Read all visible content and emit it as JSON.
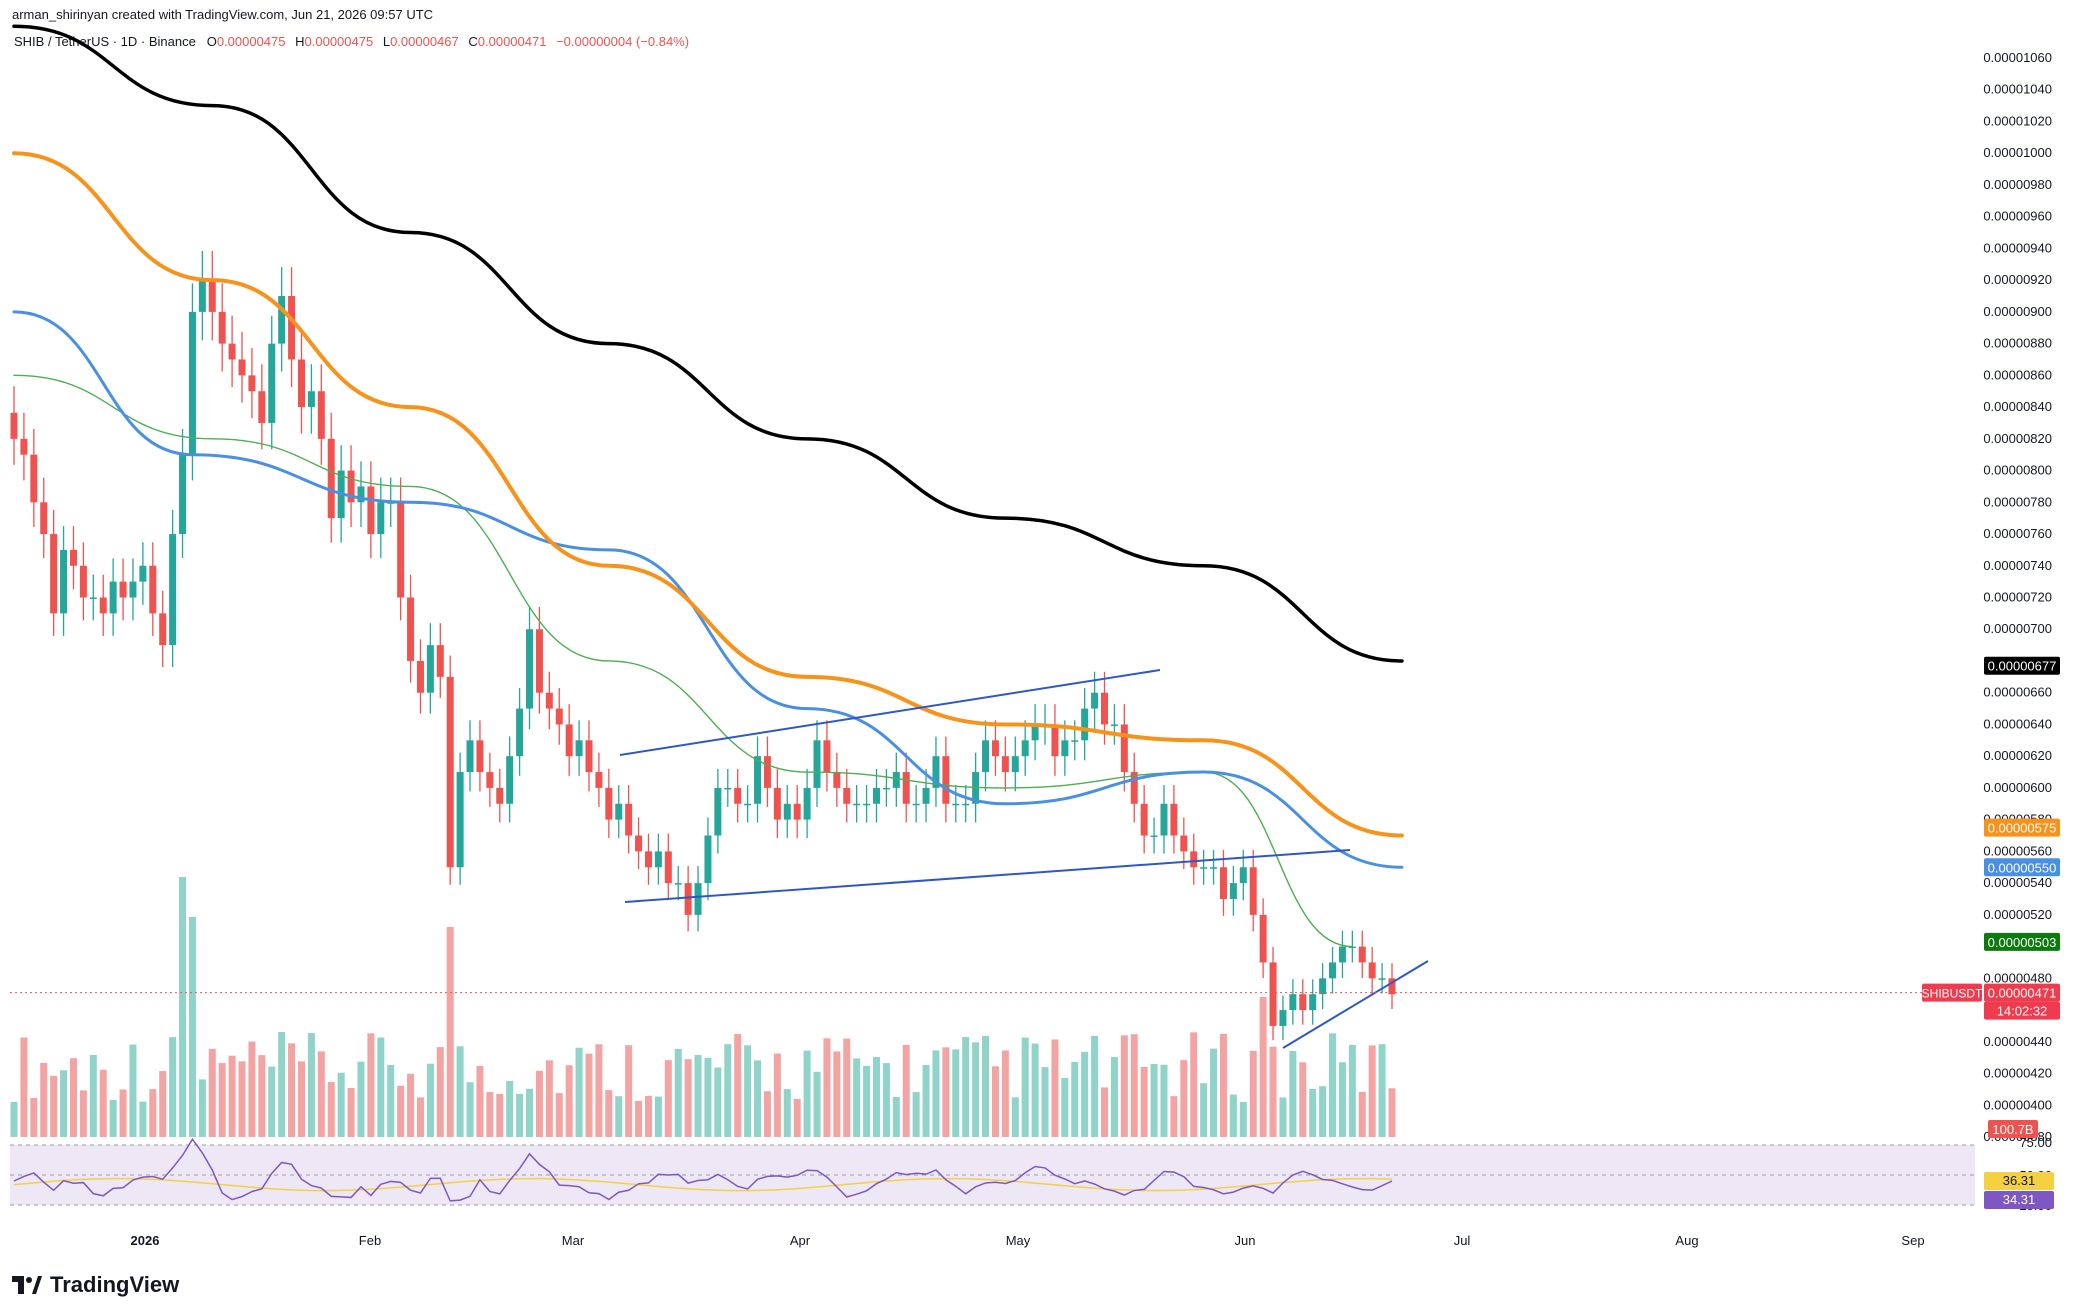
{
  "header": {
    "credit": "arman_shirinyan created with TradingView.com, Jun 21, 2026 09:57 UTC",
    "symbol": "SHIB / TetherUS · 1D · Binance",
    "ohlc": [
      {
        "label": "O",
        "value": "0.00000475"
      },
      {
        "label": "H",
        "value": "0.00000475"
      },
      {
        "label": "L",
        "value": "0.00000467"
      },
      {
        "label": "C",
        "value": "0.00000471"
      }
    ],
    "change": "−0.00000004 (−0.84%)"
  },
  "brand": "TradingView",
  "chart_data": {
    "type": "candlestick",
    "y_ticks": [
      "0.00001060",
      "0.00001040",
      "0.00001020",
      "0.00001000",
      "0.00000980",
      "0.00000960",
      "0.00000940",
      "0.00000920",
      "0.00000900",
      "0.00000880",
      "0.00000860",
      "0.00000840",
      "0.00000820",
      "0.00000800",
      "0.00000780",
      "0.00000760",
      "0.00000740",
      "0.00000720",
      "0.00000700",
      "0.00000660",
      "0.00000640",
      "0.00000620",
      "0.00000600",
      "0.00000580",
      "0.00000560",
      "0.00000540",
      "0.00000520",
      "0.00000480",
      "0.00000440",
      "0.00000420",
      "0.00000400",
      "0.00000380"
    ],
    "x_ticks": [
      "2026",
      "Feb",
      "Mar",
      "Apr",
      "May",
      "Jun",
      "Jul",
      "Aug",
      "Sep"
    ],
    "ylim": [
      3.8e-06,
      1.06e-05
    ],
    "price_labels": [
      {
        "name": "ma-200",
        "text": "0.00000677",
        "value": 6.77e-06,
        "color": "#000000"
      },
      {
        "name": "ma-100",
        "text": "0.00000575",
        "value": 5.75e-06,
        "color": "#f7931a"
      },
      {
        "name": "ma-50",
        "text": "0.00000550",
        "value": 5.5e-06,
        "color": "#4a90e2"
      },
      {
        "name": "ma-20",
        "text": "0.00000503",
        "value": 5.03e-06,
        "color": "#0d7a0d"
      },
      {
        "name": "last-price",
        "text": "0.00000471",
        "value": 4.71e-06,
        "color": "#ef3b4e"
      }
    ],
    "symbol_tag": "SHIBUSDT",
    "countdown": "14:02:32",
    "volume_label": "100.7B",
    "close_series": [
      8.2e-06,
      8.1e-06,
      7.8e-06,
      7.6e-06,
      7.1e-06,
      7.5e-06,
      7.4e-06,
      7.2e-06,
      7.2e-06,
      7.1e-06,
      7.3e-06,
      7.2e-06,
      7.3e-06,
      7.4e-06,
      7.1e-06,
      6.9e-06,
      7.6e-06,
      8.1e-06,
      9e-06,
      9.2e-06,
      9e-06,
      8.8e-06,
      8.7e-06,
      8.6e-06,
      8.5e-06,
      8.3e-06,
      8.8e-06,
      9.1e-06,
      8.7e-06,
      8.4e-06,
      8.5e-06,
      8.2e-06,
      7.7e-06,
      8e-06,
      7.8e-06,
      7.9e-06,
      7.6e-06,
      7.8e-06,
      7.8e-06,
      7.2e-06,
      6.8e-06,
      6.6e-06,
      6.9e-06,
      6.7e-06,
      5.5e-06,
      6.1e-06,
      6.3e-06,
      6.1e-06,
      6e-06,
      5.9e-06,
      6.2e-06,
      6.5e-06,
      7e-06,
      6.6e-06,
      6.5e-06,
      6.4e-06,
      6.2e-06,
      6.3e-06,
      6.1e-06,
      6e-06,
      5.8e-06,
      5.9e-06,
      5.7e-06,
      5.6e-06,
      5.5e-06,
      5.6e-06,
      5.4e-06,
      5.4e-06,
      5.2e-06,
      5.4e-06,
      5.7e-06,
      6e-06,
      6e-06,
      5.9e-06,
      5.9e-06,
      6.2e-06,
      6e-06,
      5.8e-06,
      5.9e-06,
      5.8e-06,
      6e-06,
      6.3e-06,
      6.1e-06,
      6e-06,
      5.9e-06,
      5.9e-06,
      5.9e-06,
      6e-06,
      6e-06,
      6.1e-06,
      5.9e-06,
      5.9e-06,
      6e-06,
      6.2e-06,
      5.9e-06,
      5.9e-06,
      5.9e-06,
      6.1e-06,
      6.3e-06,
      6.2e-06,
      6.1e-06,
      6.2e-06,
      6.3e-06,
      6.4e-06,
      6.4e-06,
      6.2e-06,
      6.3e-06,
      6.3e-06,
      6.5e-06,
      6.6e-06,
      6.4e-06,
      6.4e-06,
      6.1e-06,
      5.9e-06,
      5.7e-06,
      5.7e-06,
      5.9e-06,
      5.7e-06,
      5.6e-06,
      5.5e-06,
      5.5e-06,
      5.5e-06,
      5.3e-06,
      5.4e-06,
      5.5e-06,
      5.2e-06,
      4.9e-06,
      4.5e-06,
      4.6e-06,
      4.7e-06,
      4.6e-06,
      4.7e-06,
      4.8e-06,
      4.9e-06,
      5e-06,
      5e-06,
      4.9e-06,
      4.8e-06,
      4.8e-06,
      4.7e-06
    ],
    "series": [
      {
        "name": "MA 20",
        "color": "#4caf50",
        "points": [
          [
            0,
            8.6e-06
          ],
          [
            20,
            8.2e-06
          ],
          [
            40,
            7.9e-06
          ],
          [
            60,
            6.8e-06
          ],
          [
            80,
            6.1e-06
          ],
          [
            100,
            6e-06
          ],
          [
            120,
            6.1e-06
          ],
          [
            135,
            5e-06
          ]
        ]
      },
      {
        "name": "MA 50",
        "color": "#4a90e2",
        "points": [
          [
            0,
            9e-06
          ],
          [
            18,
            8.1e-06
          ],
          [
            40,
            7.8e-06
          ],
          [
            60,
            7.5e-06
          ],
          [
            80,
            6.5e-06
          ],
          [
            100,
            5.9e-06
          ],
          [
            120,
            6.1e-06
          ],
          [
            140,
            5.5e-06
          ]
        ]
      },
      {
        "name": "MA 100",
        "color": "#f7931a",
        "points": [
          [
            0,
            1e-05
          ],
          [
            20,
            9.2e-06
          ],
          [
            40,
            8.4e-06
          ],
          [
            60,
            7.4e-06
          ],
          [
            80,
            6.7e-06
          ],
          [
            100,
            6.4e-06
          ],
          [
            120,
            6.3e-06
          ],
          [
            140,
            5.7e-06
          ]
        ]
      },
      {
        "name": "MA 200",
        "color": "#000000",
        "points": [
          [
            0,
            1.08e-05
          ],
          [
            20,
            1.03e-05
          ],
          [
            40,
            9.5e-06
          ],
          [
            60,
            8.8e-06
          ],
          [
            80,
            8.2e-06
          ],
          [
            100,
            7.7e-06
          ],
          [
            120,
            7.4e-06
          ],
          [
            140,
            6.8e-06
          ]
        ]
      }
    ],
    "rsi": {
      "levels": [
        "75.00",
        "50.00",
        "25.00"
      ],
      "values": [
        {
          "text": "36.31",
          "color": "#f5d142"
        },
        {
          "text": "34.31",
          "color": "#7e57c2"
        }
      ]
    }
  }
}
